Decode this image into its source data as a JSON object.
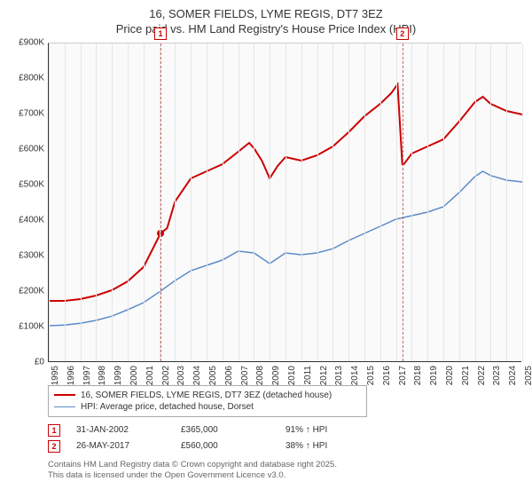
{
  "title_line1": "16, SOMER FIELDS, LYME REGIS, DT7 3EZ",
  "title_line2": "Price paid vs. HM Land Registry's House Price Index (HPI)",
  "chart": {
    "type": "line",
    "background_color": "#fafafa",
    "grid_color": "#e5e5e5",
    "axis_color": "#333333",
    "ylim": [
      0,
      900000
    ],
    "ytick_step": 100000,
    "yticks": [
      "£0",
      "£100K",
      "£200K",
      "£300K",
      "£400K",
      "£500K",
      "£600K",
      "£700K",
      "£800K",
      "£900K"
    ],
    "xlim": [
      1995,
      2025
    ],
    "xticks": [
      1995,
      1996,
      1997,
      1998,
      1999,
      2000,
      2001,
      2002,
      2003,
      2004,
      2005,
      2006,
      2007,
      2008,
      2009,
      2010,
      2011,
      2012,
      2013,
      2014,
      2015,
      2016,
      2017,
      2018,
      2019,
      2020,
      2021,
      2022,
      2023,
      2024,
      2025
    ],
    "label_fontsize": 10,
    "series": [
      {
        "name": "16, SOMER FIELDS, LYME REGIS, DT7 3EZ (detached house)",
        "color": "#cc0000",
        "line_width": 2,
        "points": [
          [
            1995,
            175000
          ],
          [
            1996,
            175000
          ],
          [
            1997,
            180000
          ],
          [
            1998,
            190000
          ],
          [
            1999,
            205000
          ],
          [
            2000,
            230000
          ],
          [
            2001,
            270000
          ],
          [
            2001.8,
            340000
          ],
          [
            2002.08,
            365000
          ],
          [
            2002.5,
            380000
          ],
          [
            2003,
            455000
          ],
          [
            2004,
            520000
          ],
          [
            2005,
            540000
          ],
          [
            2006,
            560000
          ],
          [
            2007,
            595000
          ],
          [
            2007.7,
            620000
          ],
          [
            2008,
            605000
          ],
          [
            2008.5,
            570000
          ],
          [
            2009,
            520000
          ],
          [
            2009.5,
            555000
          ],
          [
            2010,
            580000
          ],
          [
            2011,
            570000
          ],
          [
            2012,
            585000
          ],
          [
            2013,
            610000
          ],
          [
            2014,
            650000
          ],
          [
            2015,
            695000
          ],
          [
            2016,
            730000
          ],
          [
            2016.7,
            760000
          ],
          [
            2017.1,
            785000
          ],
          [
            2017.4,
            560000
          ],
          [
            2017.5,
            560000
          ],
          [
            2018,
            590000
          ],
          [
            2019,
            610000
          ],
          [
            2020,
            630000
          ],
          [
            2021,
            680000
          ],
          [
            2022,
            735000
          ],
          [
            2022.5,
            750000
          ],
          [
            2023,
            730000
          ],
          [
            2024,
            710000
          ],
          [
            2025,
            700000
          ]
        ]
      },
      {
        "name": "HPI: Average price, detached house, Dorset",
        "color": "#5b8bc9",
        "line_width": 1.5,
        "points": [
          [
            1995,
            105000
          ],
          [
            1996,
            107000
          ],
          [
            1997,
            112000
          ],
          [
            1998,
            120000
          ],
          [
            1999,
            132000
          ],
          [
            2000,
            150000
          ],
          [
            2001,
            170000
          ],
          [
            2002,
            200000
          ],
          [
            2003,
            232000
          ],
          [
            2004,
            260000
          ],
          [
            2005,
            275000
          ],
          [
            2006,
            290000
          ],
          [
            2007,
            315000
          ],
          [
            2008,
            310000
          ],
          [
            2009,
            280000
          ],
          [
            2009.5,
            295000
          ],
          [
            2010,
            310000
          ],
          [
            2011,
            305000
          ],
          [
            2012,
            310000
          ],
          [
            2013,
            322000
          ],
          [
            2014,
            345000
          ],
          [
            2015,
            365000
          ],
          [
            2016,
            385000
          ],
          [
            2017,
            405000
          ],
          [
            2018,
            415000
          ],
          [
            2019,
            425000
          ],
          [
            2020,
            440000
          ],
          [
            2021,
            480000
          ],
          [
            2022,
            525000
          ],
          [
            2022.5,
            540000
          ],
          [
            2023,
            528000
          ],
          [
            2024,
            515000
          ],
          [
            2025,
            510000
          ]
        ]
      }
    ],
    "sale_marker": {
      "year": 2002.08,
      "value": 365000,
      "color": "#cc0000",
      "radius": 4
    },
    "event_markers": [
      {
        "label": "1",
        "year": 2002.08
      },
      {
        "label": "2",
        "year": 2017.4
      }
    ]
  },
  "legend": {
    "item1": "16, SOMER FIELDS, LYME REGIS, DT7 3EZ (detached house)",
    "item2": "HPI: Average price, detached house, Dorset"
  },
  "transactions": [
    {
      "label": "1",
      "date": "31-JAN-2002",
      "price": "£365,000",
      "delta": "91% ↑ HPI"
    },
    {
      "label": "2",
      "date": "26-MAY-2017",
      "price": "£560,000",
      "delta": "38% ↑ HPI"
    }
  ],
  "footer_line1": "Contains HM Land Registry data © Crown copyright and database right 2025.",
  "footer_line2": "This data is licensed under the Open Government Licence v3.0."
}
